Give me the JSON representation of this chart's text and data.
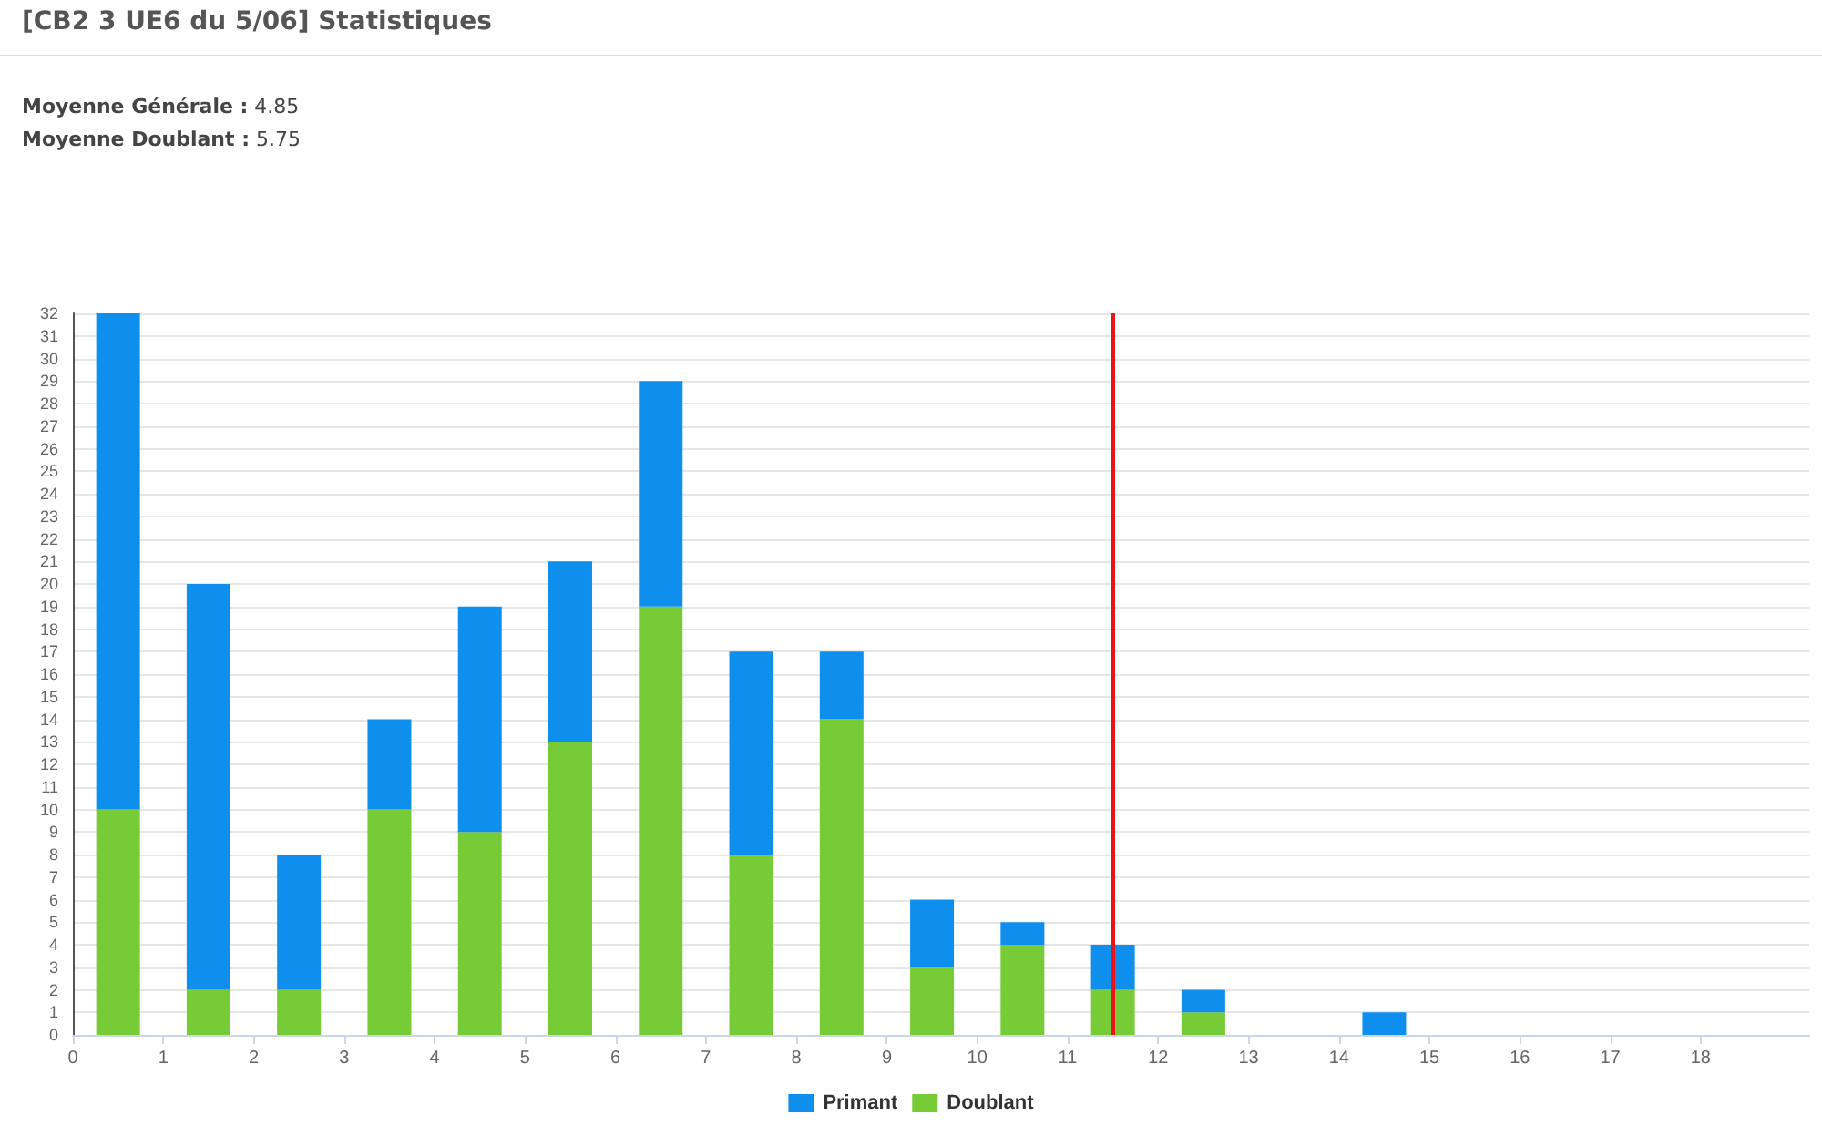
{
  "chart_data": {
    "type": "bar",
    "title": "[CB2 3 UE6 du 5/06] Statistiques",
    "annotations": [
      "Moyenne Générale : 4.85",
      "Moyenne Doublant : 5.75"
    ],
    "x": [
      0.5,
      1.5,
      2.5,
      3.5,
      4.5,
      5.5,
      6.5,
      7.5,
      8.5,
      9.5,
      10.5,
      11.5,
      12.5,
      13.5,
      14.5
    ],
    "stacked": true,
    "series": [
      {
        "name": "Doublant",
        "color": "#77cb37",
        "values": [
          10,
          2,
          2,
          10,
          9,
          13,
          19,
          8,
          14,
          3,
          4,
          2,
          1,
          0,
          0
        ]
      },
      {
        "name": "Primant",
        "color": "#0e8fee",
        "values": [
          22,
          18,
          6,
          4,
          10,
          8,
          10,
          9,
          3,
          3,
          1,
          2,
          1,
          0,
          1
        ]
      }
    ],
    "xlim": [
      0,
      19.2
    ],
    "xticks": [
      0,
      1,
      2,
      3,
      4,
      5,
      6,
      7,
      8,
      9,
      10,
      11,
      12,
      13,
      14,
      15,
      16,
      17,
      18
    ],
    "ylim": [
      0,
      32
    ],
    "yticks": [
      0,
      1,
      2,
      3,
      4,
      5,
      6,
      7,
      8,
      9,
      10,
      11,
      12,
      13,
      14,
      15,
      16,
      17,
      18,
      19,
      20,
      21,
      22,
      23,
      24,
      25,
      26,
      27,
      28,
      29,
      30,
      31,
      32
    ],
    "ref_lines": [
      {
        "axis": "x",
        "value": 11.5,
        "label": null,
        "color": "#e8141a"
      }
    ],
    "grid": "y",
    "legend": "bottom"
  }
}
